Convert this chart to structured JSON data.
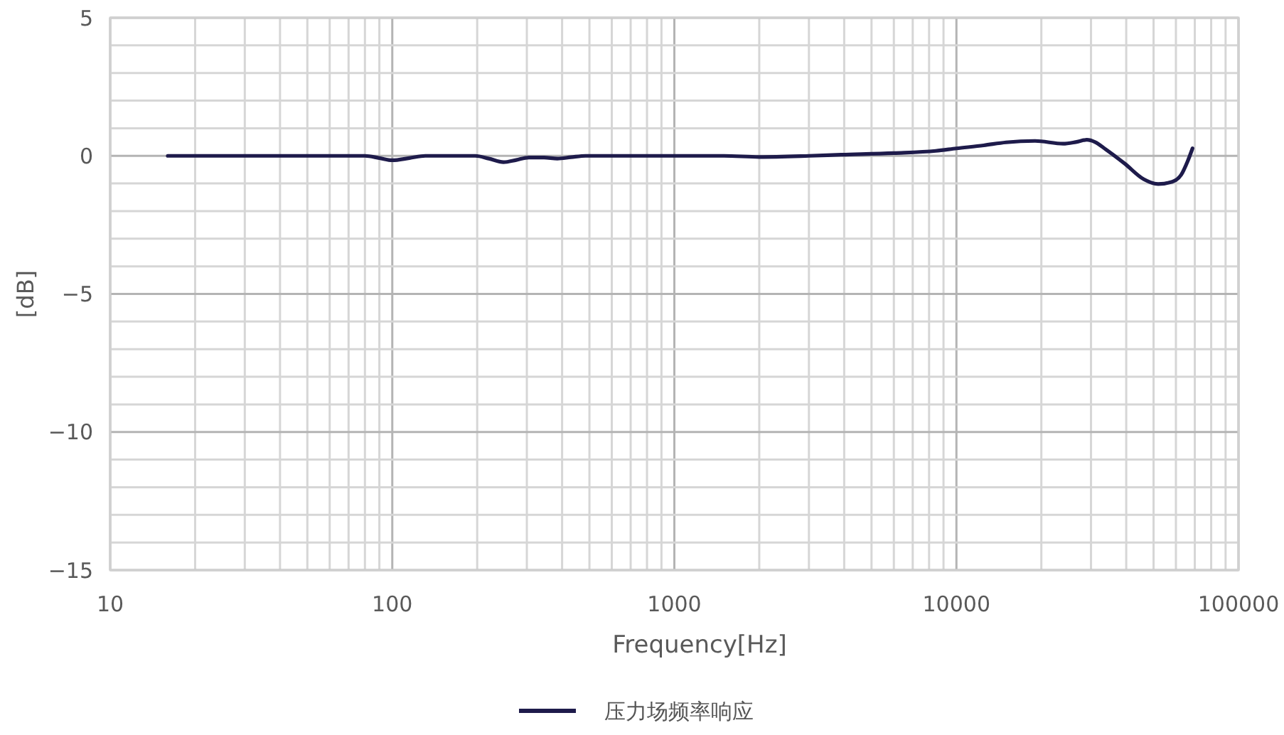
{
  "chart_data": {
    "type": "line",
    "xlabel": "Frequency[Hz]",
    "ylabel": "[dB]",
    "log": "x",
    "xlim": [
      10,
      100000
    ],
    "ylim": [
      -15,
      5
    ],
    "xticks": [
      10,
      {
        "value": 20,
        "label": null
      },
      {
        "value": 30,
        "label": null
      },
      {
        "value": 40,
        "label": null
      },
      {
        "value": 50,
        "label": null
      },
      {
        "value": 60,
        "label": null
      },
      {
        "value": 70,
        "label": null
      },
      {
        "value": 80,
        "label": null
      },
      {
        "value": 90,
        "label": null
      },
      100,
      {
        "value": 200,
        "label": null
      },
      {
        "value": 300,
        "label": null
      },
      {
        "value": 400,
        "label": null
      },
      {
        "value": 500,
        "label": null
      },
      {
        "value": 600,
        "label": null
      },
      {
        "value": 700,
        "label": null
      },
      {
        "value": 800,
        "label": null
      },
      {
        "value": 900,
        "label": null
      },
      1000,
      {
        "value": 2000,
        "label": null
      },
      {
        "value": 3000,
        "label": null
      },
      {
        "value": 4000,
        "label": null
      },
      {
        "value": 5000,
        "label": null
      },
      {
        "value": 6000,
        "label": null
      },
      {
        "value": 7000,
        "label": null
      },
      {
        "value": 8000,
        "label": null
      },
      {
        "value": 9000,
        "label": null
      },
      10000,
      {
        "value": 20000,
        "label": null
      },
      {
        "value": 30000,
        "label": null
      },
      {
        "value": 40000,
        "label": null
      },
      {
        "value": 50000,
        "label": null
      },
      {
        "value": 60000,
        "label": null
      },
      {
        "value": 70000,
        "label": null
      },
      {
        "value": 80000,
        "label": null
      },
      {
        "value": 90000,
        "label": null
      },
      100000
    ],
    "yticks": [
      {
        "value": -15,
        "label": "−15"
      },
      {
        "value": -14,
        "label": null
      },
      {
        "value": -13,
        "label": null
      },
      {
        "value": -12,
        "label": null
      },
      {
        "value": -11,
        "label": null
      },
      {
        "value": -10,
        "label": "−10"
      },
      {
        "value": -9,
        "label": null
      },
      {
        "value": -8,
        "label": null
      },
      {
        "value": -7,
        "label": null
      },
      {
        "value": -6,
        "label": null
      },
      {
        "value": -5,
        "label": "−5"
      },
      {
        "value": -4,
        "label": null
      },
      {
        "value": -3,
        "label": null
      },
      {
        "value": -2,
        "label": null
      },
      {
        "value": -1,
        "label": null
      },
      0,
      {
        "value": 1,
        "label": null
      },
      {
        "value": 2,
        "label": null
      },
      {
        "value": 3,
        "label": null
      },
      {
        "value": 4,
        "label": null
      },
      5
    ],
    "grid": true,
    "legend": "bottom",
    "series": [
      {
        "name": "压力场频率响应",
        "color": "#1e1b4b",
        "x": [
          16,
          25,
          40,
          63,
          80,
          90,
          100,
          115,
          131,
          160,
          197,
          220,
          248,
          275,
          305,
          345,
          385,
          430,
          485,
          700,
          1000,
          1500,
          2000,
          3000,
          3900,
          6000,
          8450,
          10000,
          12500,
          15000,
          19000,
          23900,
          26500,
          29000,
          31000,
          33900,
          39500,
          46200,
          51900,
          58200,
          62700,
          66000,
          68700
        ],
        "values": [
          0,
          0,
          0,
          0,
          0,
          -0.08,
          -0.16,
          -0.08,
          0,
          0,
          0,
          -0.1,
          -0.23,
          -0.15,
          -0.06,
          -0.06,
          -0.1,
          -0.05,
          0,
          0,
          0,
          0,
          -0.04,
          0,
          0.04,
          0.1,
          0.18,
          0.27,
          0.38,
          0.49,
          0.54,
          0.44,
          0.5,
          0.58,
          0.5,
          0.23,
          -0.28,
          -0.85,
          -1.02,
          -0.94,
          -0.68,
          -0.2,
          0.27
        ]
      }
    ]
  }
}
